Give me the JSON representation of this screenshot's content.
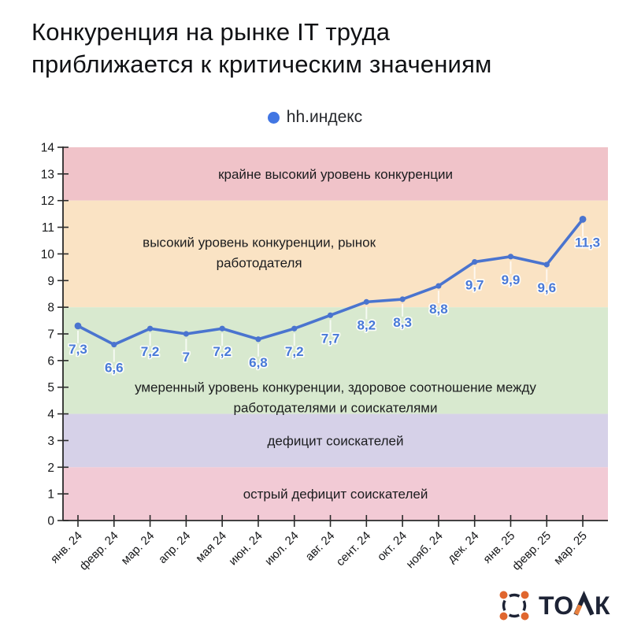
{
  "title": {
    "line1": "Конкуренция на рынке IT труда",
    "line2": "приближается к критическим значениям"
  },
  "legend": {
    "label": "hh.индекс",
    "dot_color": "#4176e3"
  },
  "chart_data": {
    "type": "line",
    "title": "Конкуренция на рынке IT труда приближается к критическим значениям",
    "xlabel": "",
    "ylabel": "",
    "ylim": [
      0,
      14
    ],
    "y_tick_step": 1,
    "grid": false,
    "legend_position": "top",
    "x": [
      "янв. 24",
      "февр. 24",
      "мар. 24",
      "апр. 24",
      "мая 24",
      "июн. 24",
      "июл. 24",
      "авг. 24",
      "сент. 24",
      "окт. 24",
      "нояб. 24",
      "дек. 24",
      "янв. 25",
      "февр. 25",
      "мар. 25"
    ],
    "series": [
      {
        "name": "hh.индекс",
        "values": [
          7.3,
          6.6,
          7.2,
          7,
          7.2,
          6.8,
          7.2,
          7.7,
          8.2,
          8.3,
          8.8,
          9.7,
          9.9,
          9.6,
          11.3
        ],
        "point_labels": [
          "7,3",
          "6,6",
          "7,2",
          "7",
          "7,2",
          "6,8",
          "7,2",
          "7,7",
          "8,2",
          "8,3",
          "8,8",
          "9,7",
          "9,9",
          "9,6",
          "11,3"
        ],
        "line_color": "#4a74cf",
        "label_color": "#4879d8"
      }
    ],
    "bands": [
      {
        "from": 12,
        "to": 14,
        "color": "#f0c3c9",
        "label_lines": [
          "крайне высокий уровень конкуренции"
        ],
        "label_value": 13,
        "label_cx_frac": 0.5
      },
      {
        "from": 8,
        "to": 12,
        "color": "#fae3c4",
        "label_lines": [
          "высокий уровень конкуренции, рынок",
          "работодателя"
        ],
        "label_value": 10.05,
        "label_cx_frac": 0.36
      },
      {
        "from": 4,
        "to": 8,
        "color": "#d8e9cf",
        "label_lines": [
          "умеренный уровень конкуренции, здоровое соотношение между",
          "работодателями и соискателями"
        ],
        "label_value": 4.62,
        "label_cx_frac": 0.5
      },
      {
        "from": 2,
        "to": 4,
        "color": "#d6d1e8",
        "label_lines": [
          "дефицит соискателей"
        ],
        "label_value": 3,
        "label_cx_frac": 0.5
      },
      {
        "from": 0,
        "to": 2,
        "color": "#f2cad5",
        "label_lines": [
          "острый дефицит соискателей"
        ],
        "label_value": 1,
        "label_cx_frac": 0.5
      }
    ],
    "axis_color": "#2a2a2a",
    "tick_label_color": "#17181a",
    "band_label_color": "#1b1c1e"
  },
  "logo": {
    "text_to": "ТО",
    "text_k": "К",
    "text_full": "ТОЛК",
    "dot_color": "#e0662e",
    "accent_color": "#e8803f",
    "ink_color": "#1d2335"
  }
}
